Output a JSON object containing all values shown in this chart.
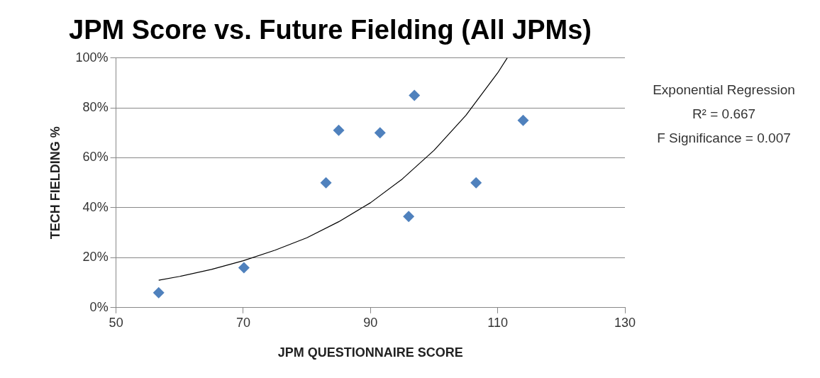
{
  "chart_data": {
    "type": "scatter",
    "title": "JPM Score vs. Future Fielding (All JPMs)",
    "xlabel": "JPM QUESTIONNAIRE SCORE",
    "ylabel": "TECH FIELDING %",
    "annotations": [
      "Exponential Regression",
      "R² = 0.667",
      "F Significance = 0.007"
    ],
    "xlim": [
      50,
      130
    ],
    "xticks": [
      50,
      70,
      90,
      110,
      130
    ],
    "ylim": [
      0,
      100
    ],
    "yticks": [
      {
        "value": 0,
        "label": "0%"
      },
      {
        "value": 20,
        "label": "20%"
      },
      {
        "value": 40,
        "label": "40%"
      },
      {
        "value": 60,
        "label": "60%"
      },
      {
        "value": 80,
        "label": "80%"
      },
      {
        "value": 100,
        "label": "100%"
      }
    ],
    "grid": "y",
    "legend": false,
    "marker": "diamond",
    "series": [
      {
        "color": "#4f81bd",
        "x": [
          56.7,
          70.1,
          83,
          85,
          91.5,
          96,
          96.9,
          106.6,
          114
        ],
        "values": [
          6,
          16,
          50,
          71,
          70,
          36.5,
          85,
          50,
          75
        ]
      },
      {
        "type": "line",
        "color": "#000000",
        "marker": "none",
        "x": [
          56.7,
          60,
          65,
          70,
          75,
          80,
          85,
          90,
          95,
          100,
          105,
          110,
          111.5
        ],
        "values": [
          11,
          12.5,
          15.3,
          18.8,
          23,
          28,
          34.4,
          42,
          51.5,
          63,
          77,
          94,
          100
        ]
      }
    ]
  }
}
